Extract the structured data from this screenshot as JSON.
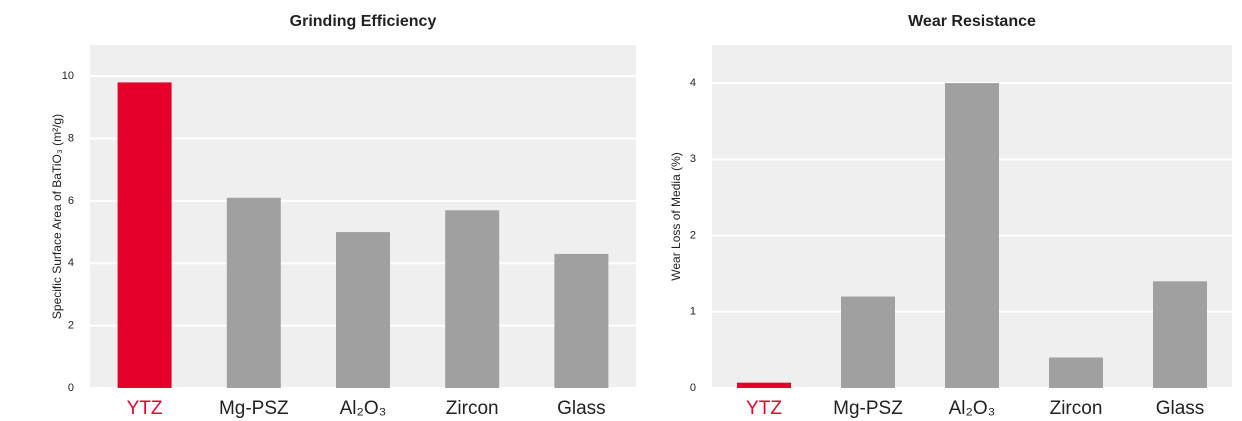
{
  "chart_data": [
    {
      "type": "bar",
      "title": "Grinding Efficiency",
      "y_label": "Specific Surface Area of BaTiO₃ (m²/g)",
      "categories": [
        "YTZ",
        "Mg-PSZ",
        "Al₂O₃",
        "Zircon",
        "Glass"
      ],
      "values": [
        9.8,
        6.1,
        5.0,
        5.7,
        4.3
      ],
      "colors": [
        "#e4002b",
        "#a0a0a0",
        "#a0a0a0",
        "#a0a0a0",
        "#a0a0a0"
      ],
      "category_colors": [
        "#e4002b",
        "#222222",
        "#222222",
        "#222222",
        "#222222"
      ],
      "ylim": [
        0,
        11
      ],
      "yticks": [
        0,
        2,
        4,
        6,
        8,
        10
      ],
      "grid": true
    },
    {
      "type": "bar",
      "title": "Wear Resistance",
      "y_label": "Wear Loss of Media (%)",
      "categories": [
        "YTZ",
        "Mg-PSZ",
        "Al₂O₃",
        "Zircon",
        "Glass"
      ],
      "values": [
        0.07,
        1.2,
        4.0,
        0.4,
        1.4
      ],
      "colors": [
        "#e4002b",
        "#a0a0a0",
        "#a0a0a0",
        "#a0a0a0",
        "#a0a0a0"
      ],
      "category_colors": [
        "#e4002b",
        "#222222",
        "#222222",
        "#222222",
        "#222222"
      ],
      "ylim": [
        0,
        4.5
      ],
      "yticks": [
        0,
        1,
        2,
        3,
        4
      ],
      "grid": true
    }
  ]
}
